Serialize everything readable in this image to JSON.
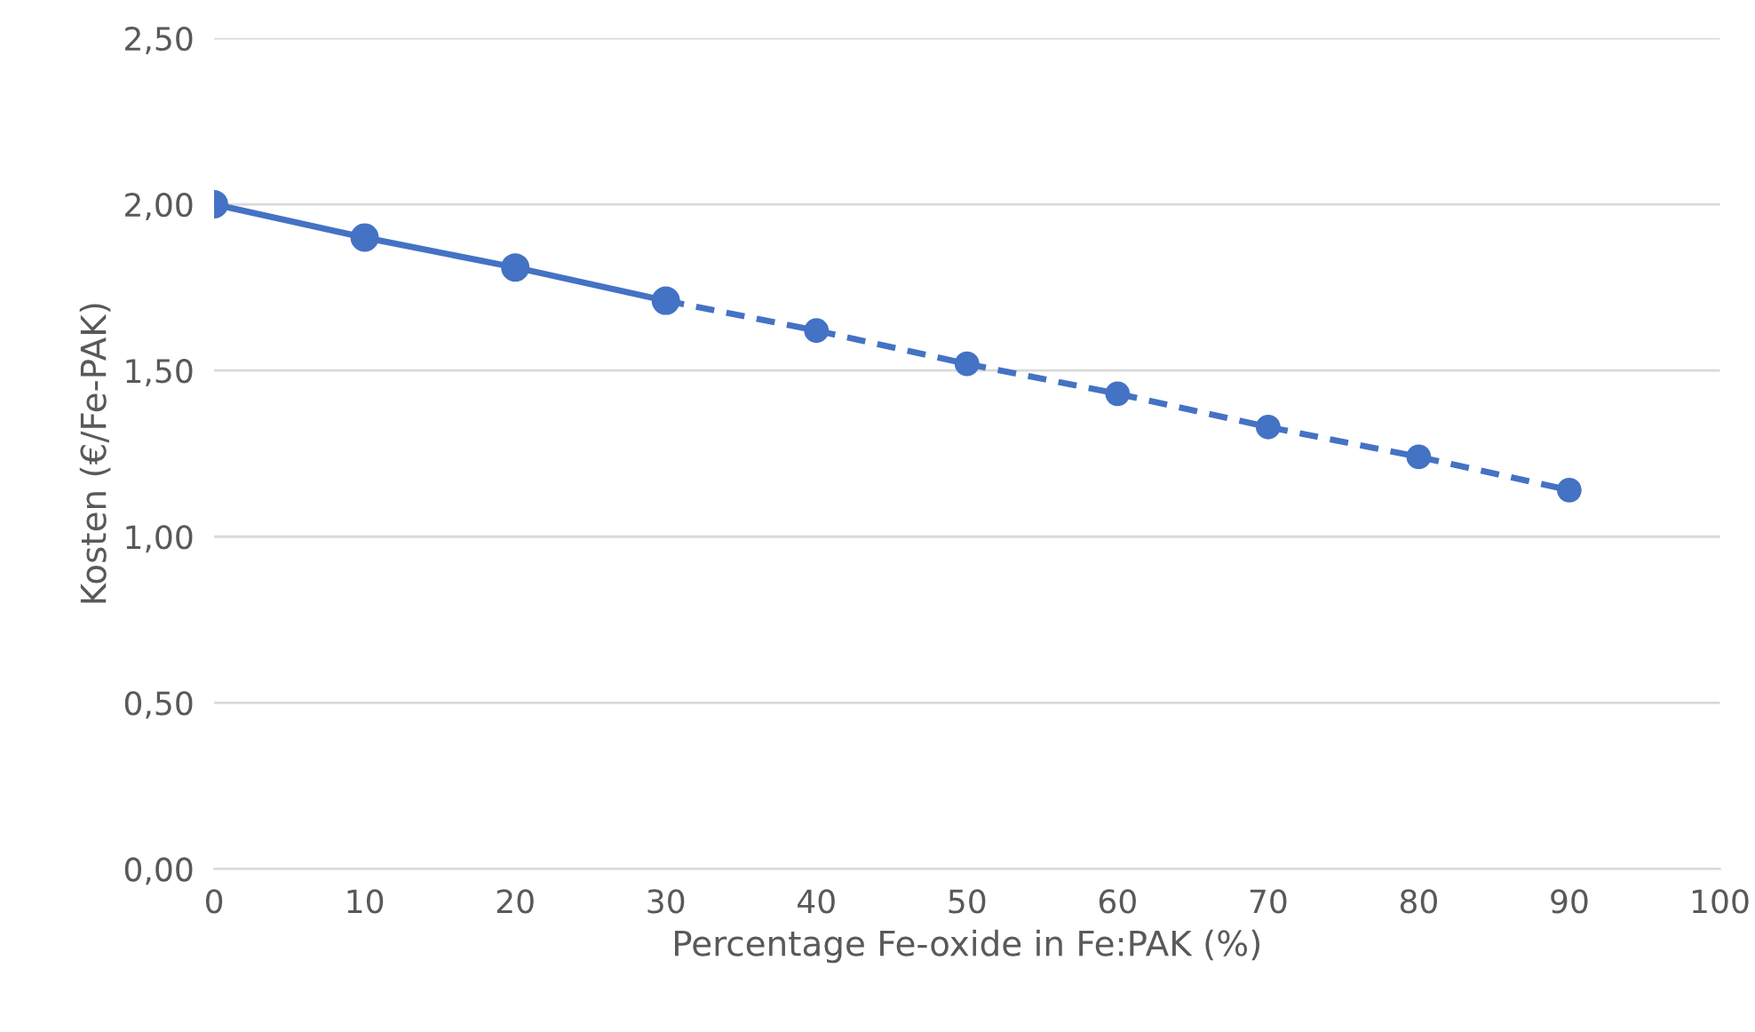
{
  "chart_data": {
    "type": "line",
    "xlabel": "Percentage Fe-oxide in Fe:PAK (%)",
    "ylabel": "Kosten (€/Fe-PAK)",
    "series": [
      {
        "color": "#4472c4",
        "line_style": "solid",
        "x": [
          0,
          10,
          20,
          30
        ],
        "values": [
          2.0,
          1.9,
          1.81,
          1.71
        ]
      },
      {
        "color": "#4472c4",
        "line_style": "dashed",
        "x": [
          30,
          40,
          50,
          60,
          70,
          80,
          90
        ],
        "values": [
          1.71,
          1.62,
          1.52,
          1.43,
          1.33,
          1.24,
          1.14
        ]
      }
    ],
    "marker": "circle",
    "xlim": [
      0,
      100
    ],
    "xticks": [
      0,
      10,
      20,
      30,
      40,
      50,
      60,
      70,
      80,
      90,
      100
    ],
    "ylim": [
      0,
      2.5
    ],
    "yticks": [
      {
        "value": 0,
        "label": "0,00"
      },
      {
        "value": 0.5,
        "label": "0,50"
      },
      {
        "value": 1,
        "label": "1,00"
      },
      {
        "value": 1.5,
        "label": "1,50"
      },
      {
        "value": 2,
        "label": "2,00"
      },
      {
        "value": 2.5,
        "label": "2,50"
      }
    ],
    "grid": "y",
    "legend": false
  }
}
